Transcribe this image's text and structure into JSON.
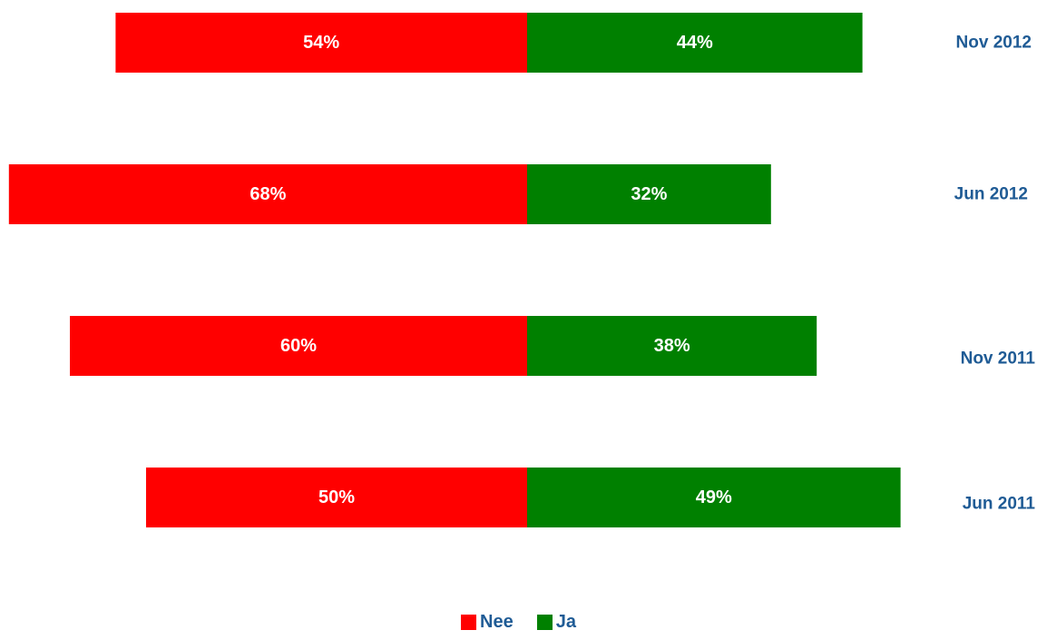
{
  "chart_data": {
    "type": "bar",
    "orientation": "horizontal",
    "stacked": true,
    "diverging": true,
    "categories": [
      "Nov 2012",
      "Jun 2012",
      "Nov 2011",
      "Jun 2011"
    ],
    "series": [
      {
        "name": "Nee",
        "color": "#ff0000",
        "values": [
          54,
          68,
          60,
          50
        ],
        "labels": [
          "54%",
          "68%",
          "60%",
          "50%"
        ]
      },
      {
        "name": "Ja",
        "color": "#008000",
        "values": [
          44,
          32,
          38,
          49
        ],
        "labels": [
          "44%",
          "32%",
          "38%",
          "49%"
        ]
      }
    ],
    "category_label_color": "#1f5b95",
    "value_label_color": "#ffffff",
    "grid": false,
    "legend": {
      "position": "bottom-center"
    }
  }
}
